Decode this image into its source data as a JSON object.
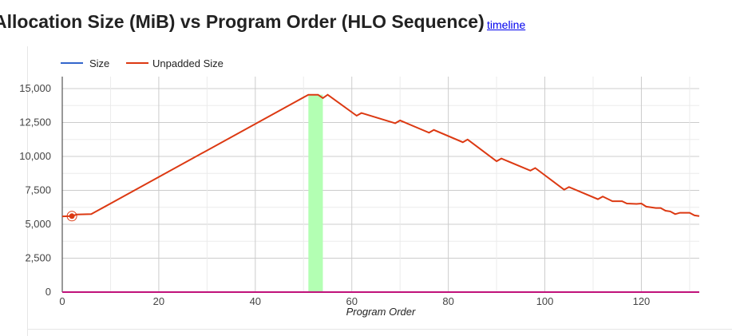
{
  "header": {
    "title": "Allocation Size (MiB) vs Program Order (HLO Sequence)",
    "link_label": "timeline"
  },
  "chart_data": {
    "type": "line",
    "title": "Allocation Size (MiB) vs Program Order (HLO Sequence)",
    "xlabel": "Program Order",
    "ylabel": "",
    "xlim": [
      0,
      132
    ],
    "ylim": [
      0,
      15000
    ],
    "x_ticks": [
      "0",
      "20",
      "40",
      "60",
      "80",
      "100",
      "120"
    ],
    "x_tick_values": [
      0,
      20,
      40,
      60,
      80,
      100,
      120
    ],
    "y_ticks": [
      "0",
      "2,500",
      "5,000",
      "7,500",
      "10,000",
      "12,500",
      "15,000"
    ],
    "y_tick_values": [
      0,
      2500,
      5000,
      7500,
      10000,
      12500,
      15000
    ],
    "grid": true,
    "legend_position": "top",
    "series": [
      {
        "name": "Size",
        "color": "#3366cc",
        "x": [
          0,
          132
        ],
        "y": [
          0,
          0
        ]
      },
      {
        "name": "Unpadded Size",
        "color": "#dc3912",
        "x": [
          0,
          2,
          3,
          6,
          51,
          53,
          54,
          55,
          61,
          62,
          69,
          70,
          76,
          77,
          83,
          84,
          90,
          91,
          97,
          98,
          104,
          105,
          111,
          112,
          114,
          116,
          117,
          119,
          120,
          121,
          123,
          124,
          125,
          126,
          127,
          128,
          130,
          131,
          132
        ],
        "y": [
          5580,
          5600,
          5720,
          5750,
          14550,
          14550,
          14300,
          14550,
          13000,
          13200,
          12450,
          12650,
          11750,
          11950,
          11050,
          11250,
          9650,
          9850,
          8950,
          9150,
          7550,
          7750,
          6850,
          7050,
          6700,
          6700,
          6530,
          6500,
          6530,
          6300,
          6200,
          6200,
          6000,
          5950,
          5750,
          5850,
          5850,
          5650,
          5600
        ]
      }
    ],
    "highlight_band": {
      "x_start": 51,
      "x_end": 54,
      "color": "#b3ffb3"
    },
    "marker": {
      "x": 2,
      "y": 5600,
      "color": "#dc3912"
    }
  }
}
